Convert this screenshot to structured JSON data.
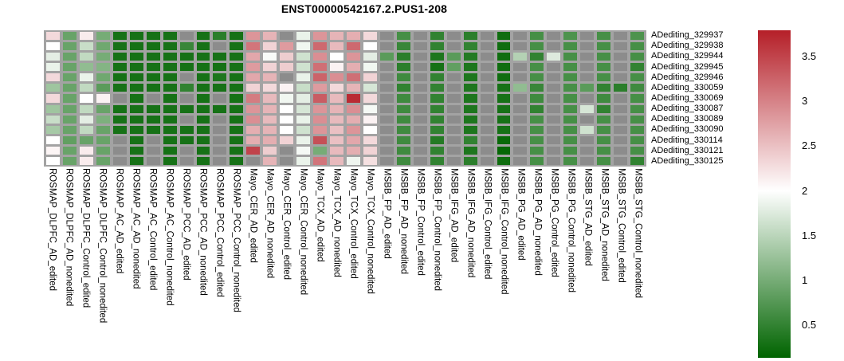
{
  "chart_data": {
    "type": "heatmap",
    "title": "ENST00000542167.2.PUS1-208",
    "rows": [
      "ADediting_329937",
      "ADediting_329938",
      "ADediting_329944",
      "ADediting_329945",
      "ADediting_329946",
      "ADediting_330059",
      "ADediting_330069",
      "ADediting_330087",
      "ADediting_330089",
      "ADediting_330090",
      "ADediting_330114",
      "ADediting_330121",
      "ADediting_330125"
    ],
    "columns": [
      "ROSMAP_DLPFC_AD_edited",
      "ROSMAP_DLPFC_AD_nonedited",
      "ROSMAP_DLPFC_Control_edited",
      "ROSMAP_DLPFC_Control_nonedited",
      "ROSMAP_AC_AD_edited",
      "ROSMAP_AC_AD_nonedited",
      "ROSMAP_AC_Control_edited",
      "ROSMAP_AC_Control_nonedited",
      "ROSMAP_PCC_AD_edited",
      "ROSMAP_PCC_AD_nonedited",
      "ROSMAP_PCC_Control_edited",
      "ROSMAP_PCC_Control_nonedited",
      "Mayo_CER_AD_edited",
      "Mayo_CER_AD_nonedited",
      "Mayo_CER_Control_edited",
      "Mayo_CER_Control_nonedited",
      "Mayo_TCX_AD_edited",
      "Mayo_TCX_AD_nonedited",
      "Mayo_TCX_Control_edited",
      "Mayo_TCX_Control_nonedited",
      "MSBB_FP_AD_edited",
      "MSBB_FP_AD_nonedited",
      "MSBB_FP_Control_edited",
      "MSBB_FP_Control_nonedited",
      "MSBB_IFG_AD_edited",
      "MSBB_IFG_AD_nonedited",
      "MSBB_IFG_Control_edited",
      "MSBB_IFG_Control_nonedited",
      "MSBB_PG_AD_edited",
      "MSBB_PG_AD_nonedited",
      "MSBB_PG_Control_edited",
      "MSBB_PG_Control_nonedited",
      "MSBB_STG_AD_edited",
      "MSBB_STG_AD_nonedited",
      "MSBB_STG_Control_edited",
      "MSBB_STG_Control_nonedited"
    ],
    "values": [
      [
        2.3,
        0.9,
        2.15,
        1.0,
        0.3,
        0.3,
        0.3,
        0.3,
        null,
        0.3,
        0.45,
        0.3,
        2.85,
        2.6,
        null,
        1.85,
        2.85,
        2.6,
        2.65,
        2.3,
        null,
        0.65,
        null,
        0.5,
        null,
        0.45,
        null,
        0.25,
        null,
        0.65,
        null,
        0.7,
        null,
        0.65,
        null,
        0.7
      ],
      [
        2.0,
        0.9,
        1.6,
        0.95,
        0.3,
        0.3,
        0.3,
        0.3,
        0.55,
        0.3,
        null,
        0.3,
        3.1,
        2.35,
        2.8,
        1.9,
        3.2,
        2.55,
        3.2,
        2.0,
        null,
        0.55,
        null,
        0.5,
        null,
        0.5,
        null,
        0.25,
        null,
        0.65,
        null,
        0.65,
        null,
        0.65,
        null,
        0.65
      ],
      [
        1.8,
        0.9,
        1.55,
        1.0,
        0.3,
        0.3,
        0.3,
        0.3,
        0.3,
        0.3,
        0.3,
        0.3,
        2.7,
        1.95,
        2.4,
        1.65,
        2.9,
        2.0,
        2.85,
        1.8,
        0.8,
        0.45,
        null,
        0.35,
        0.8,
        0.4,
        null,
        0.25,
        1.45,
        0.5,
        1.75,
        0.65,
        null,
        0.65,
        null,
        0.65
      ],
      [
        1.85,
        0.9,
        1.2,
        1.1,
        0.3,
        0.3,
        0.3,
        0.3,
        0.3,
        0.3,
        0.3,
        0.3,
        2.8,
        2.35,
        2.4,
        1.65,
        3.15,
        2.1,
        2.65,
        1.9,
        null,
        0.45,
        null,
        0.3,
        0.85,
        0.35,
        null,
        0.25,
        null,
        0.65,
        null,
        0.65,
        null,
        0.65,
        null,
        0.5
      ],
      [
        2.3,
        0.9,
        1.85,
        0.95,
        0.3,
        0.3,
        0.3,
        0.3,
        null,
        0.3,
        0.35,
        0.3,
        2.7,
        2.6,
        null,
        1.85,
        3.25,
        2.9,
        3.15,
        2.35,
        null,
        0.6,
        null,
        0.5,
        null,
        0.35,
        null,
        0.25,
        null,
        0.65,
        null,
        0.65,
        null,
        0.65,
        null,
        0.65
      ],
      [
        1.3,
        0.9,
        1.55,
        0.8,
        0.3,
        0.3,
        0.3,
        0.3,
        0.5,
        0.3,
        0.3,
        0.3,
        2.35,
        2.3,
        2.1,
        1.6,
        2.8,
        2.3,
        2.6,
        1.7,
        null,
        0.5,
        null,
        0.5,
        null,
        0.35,
        null,
        0.3,
        1.2,
        0.55,
        null,
        0.65,
        0.8,
        0.5,
        0.45,
        0.6
      ],
      [
        2.3,
        0.9,
        2.0,
        2.1,
        null,
        0.3,
        null,
        0.3,
        null,
        0.3,
        null,
        0.3,
        3.05,
        2.55,
        1.9,
        1.8,
        3.3,
        2.55,
        3.7,
        2.3,
        null,
        0.6,
        null,
        0.5,
        null,
        0.35,
        null,
        0.3,
        null,
        0.6,
        null,
        0.65,
        null,
        0.6,
        null,
        0.65
      ],
      [
        1.3,
        0.9,
        1.55,
        0.9,
        0.3,
        0.3,
        0.3,
        0.3,
        0.3,
        0.3,
        0.3,
        0.3,
        2.85,
        2.6,
        2.0,
        1.7,
        2.85,
        2.6,
        2.9,
        1.93,
        null,
        0.6,
        null,
        0.5,
        null,
        0.35,
        null,
        0.3,
        null,
        0.5,
        null,
        0.65,
        1.7,
        0.5,
        null,
        0.65
      ],
      [
        1.6,
        0.9,
        1.8,
        1.05,
        0.3,
        0.3,
        0.3,
        0.3,
        null,
        0.3,
        null,
        0.3,
        2.9,
        2.55,
        2.0,
        1.85,
        2.9,
        2.55,
        2.65,
        2.1,
        null,
        0.6,
        null,
        0.5,
        null,
        0.35,
        null,
        0.3,
        null,
        0.65,
        null,
        0.65,
        null,
        0.65,
        null,
        0.65
      ],
      [
        1.35,
        0.9,
        1.55,
        0.9,
        0.3,
        0.3,
        0.3,
        0.3,
        0.3,
        0.3,
        null,
        0.3,
        2.65,
        2.6,
        2.0,
        1.65,
        2.85,
        2.5,
        2.85,
        2.0,
        null,
        0.6,
        null,
        0.5,
        null,
        0.35,
        null,
        0.3,
        null,
        0.65,
        null,
        0.65,
        1.65,
        0.65,
        null,
        0.65
      ],
      [
        2.0,
        0.85,
        0.9,
        0.9,
        null,
        0.3,
        null,
        0.3,
        0.3,
        0.3,
        null,
        0.3,
        2.65,
        2.65,
        2.35,
        1.85,
        3.4,
        2.5,
        2.7,
        2.3,
        null,
        0.6,
        null,
        0.4,
        null,
        0.5,
        null,
        0.2,
        null,
        0.65,
        null,
        0.65,
        null,
        0.65,
        null,
        0.65
      ],
      [
        2.08,
        0.9,
        2.15,
        0.9,
        null,
        0.3,
        null,
        0.3,
        null,
        0.3,
        null,
        0.3,
        3.5,
        2.4,
        null,
        1.93,
        1.0,
        2.55,
        2.65,
        2.35,
        null,
        0.6,
        null,
        0.5,
        null,
        0.35,
        null,
        0.18,
        null,
        0.65,
        null,
        0.65,
        null,
        0.65,
        null,
        0.65
      ],
      [
        2.0,
        0.9,
        2.15,
        0.9,
        null,
        0.3,
        null,
        0.3,
        null,
        0.3,
        null,
        0.3,
        null,
        2.6,
        null,
        1.85,
        3.1,
        2.55,
        1.88,
        2.25,
        null,
        0.6,
        null,
        0.5,
        null,
        0.45,
        null,
        0.25,
        null,
        0.65,
        null,
        0.65,
        null,
        0.65,
        null,
        0.5
      ]
    ],
    "na_value_meaning": "gray cell (no data)",
    "color_scale": {
      "min": 0.14,
      "mid": 2.0,
      "max": 3.79,
      "ticks": [
        3.5,
        3,
        2.5,
        2,
        1.5,
        1,
        0.5
      ],
      "legend_position": "right"
    },
    "colors": {
      "negative_end": "#006400",
      "midpoint": "#ffffff",
      "positive_end": "#b51f28",
      "na_fill": "#8c8c8c",
      "grid_background": "#a3a3a3"
    },
    "grid": "off",
    "layout": {
      "row_labels_position": "right",
      "column_labels_position": "bottom",
      "column_labels_rotation": 90
    }
  }
}
